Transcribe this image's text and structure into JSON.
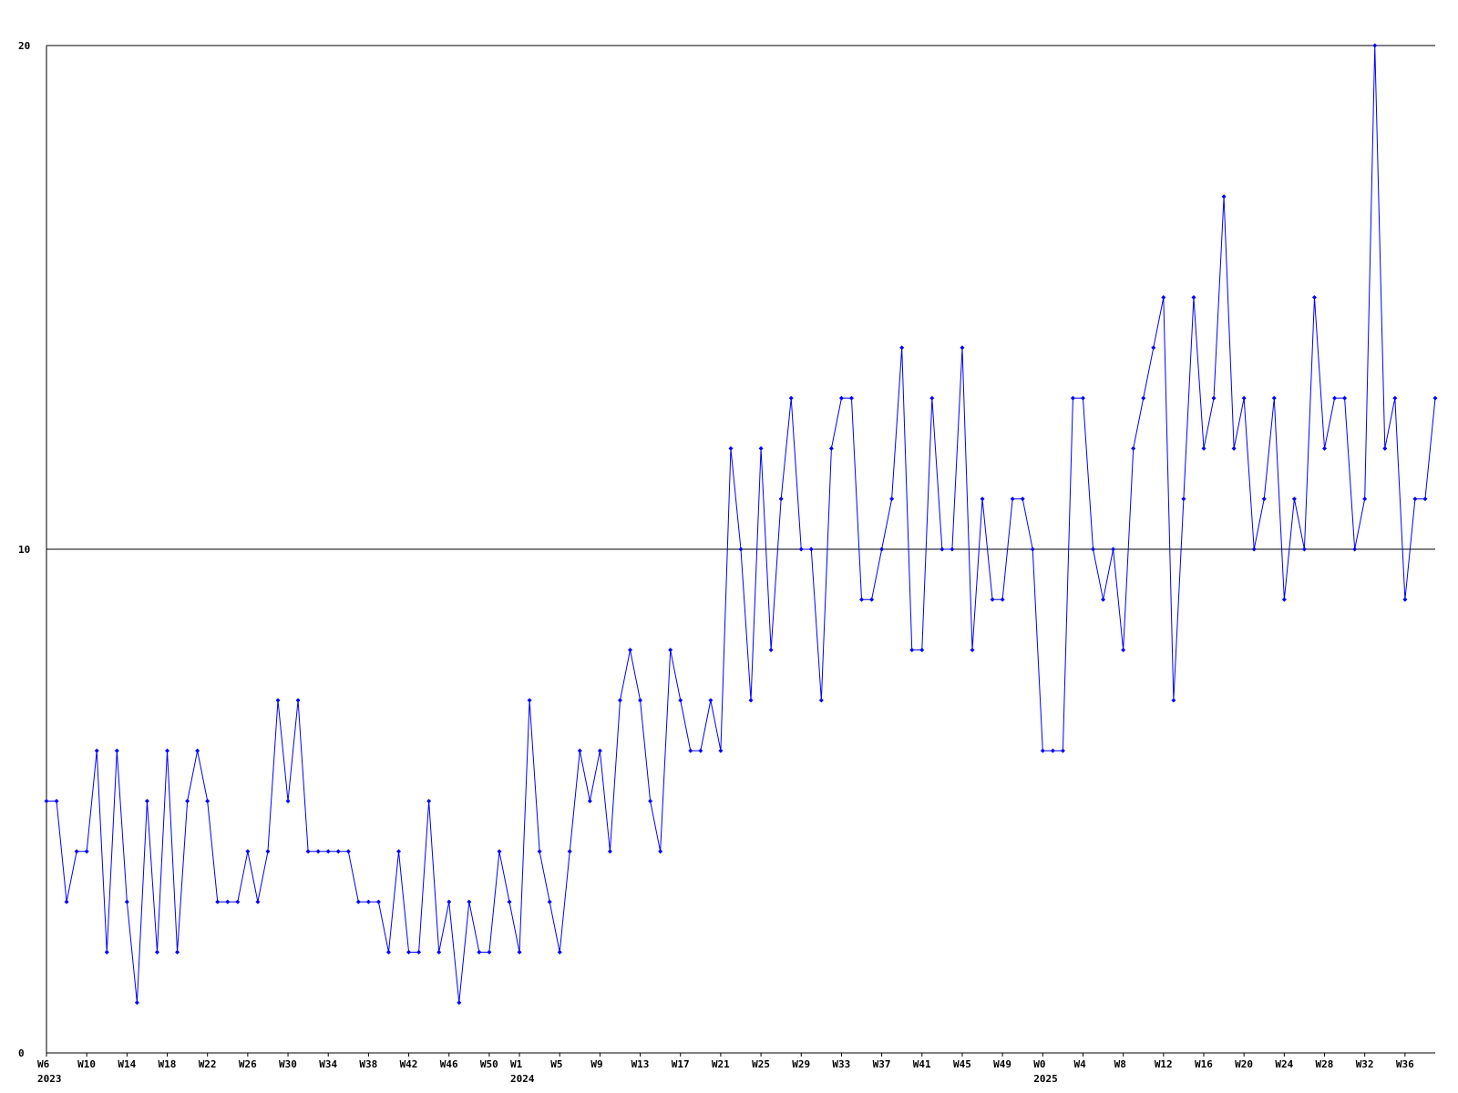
{
  "chart_data": {
    "type": "line",
    "color": "#0000ff",
    "ylim": [
      0,
      20
    ],
    "yticks": [
      0,
      10,
      20
    ],
    "grid": true,
    "categories": [
      [
        "W6",
        "2023"
      ],
      null,
      null,
      null,
      "W10",
      null,
      null,
      null,
      "W14",
      null,
      null,
      null,
      "W18",
      null,
      null,
      null,
      "W22",
      null,
      null,
      null,
      "W26",
      null,
      null,
      null,
      "W30",
      null,
      null,
      null,
      "W34",
      null,
      null,
      null,
      "W38",
      null,
      null,
      null,
      "W42",
      null,
      null,
      null,
      "W46",
      null,
      null,
      null,
      "W50",
      null,
      null,
      [
        "W1",
        "2024"
      ],
      null,
      null,
      null,
      "W5",
      null,
      null,
      null,
      "W9",
      null,
      null,
      null,
      "W13",
      null,
      null,
      null,
      "W17",
      null,
      null,
      null,
      "W21",
      null,
      null,
      null,
      "W25",
      null,
      null,
      null,
      "W29",
      null,
      null,
      null,
      "W33",
      null,
      null,
      null,
      "W37",
      null,
      null,
      null,
      "W41",
      null,
      null,
      null,
      "W45",
      null,
      null,
      null,
      "W49",
      null,
      null,
      null,
      [
        "W0",
        "2025"
      ],
      null,
      null,
      null,
      "W4",
      null,
      null,
      null,
      "W8",
      null,
      null,
      null,
      "W12",
      null,
      null,
      null,
      "W16",
      null,
      null,
      null,
      "W20",
      null,
      null,
      null,
      "W24",
      null,
      null,
      null,
      "W28",
      null,
      null,
      null,
      "W32",
      null,
      null,
      null,
      "W36",
      null,
      null,
      null
    ],
    "values": [
      5,
      5,
      3,
      4,
      4,
      6,
      2,
      6,
      3,
      1,
      5,
      2,
      6,
      2,
      5,
      6,
      5,
      3,
      3,
      3,
      4,
      3,
      4,
      7,
      5,
      7,
      4,
      4,
      4,
      4,
      4,
      3,
      3,
      3,
      2,
      4,
      2,
      2,
      5,
      2,
      3,
      1,
      3,
      2,
      2,
      4,
      3,
      2,
      7,
      4,
      3,
      2,
      4,
      6,
      5,
      6,
      4,
      7,
      8,
      7,
      5,
      4,
      8,
      7,
      6,
      6,
      7,
      6,
      12,
      10,
      7,
      12,
      8,
      11,
      13,
      10,
      10,
      7,
      12,
      13,
      13,
      9,
      9,
      10,
      11,
      14,
      8,
      8,
      13,
      10,
      10,
      14,
      8,
      11,
      9,
      9,
      11,
      11,
      10,
      6,
      6,
      6,
      13,
      13,
      10,
      9,
      10,
      8,
      12,
      13,
      14,
      15,
      7,
      11,
      15,
      12,
      13,
      17,
      12,
      13,
      10,
      11,
      13,
      9,
      11,
      10,
      15,
      12,
      13,
      13,
      10,
      11,
      20,
      12,
      13,
      9,
      11,
      11,
      13
    ]
  }
}
